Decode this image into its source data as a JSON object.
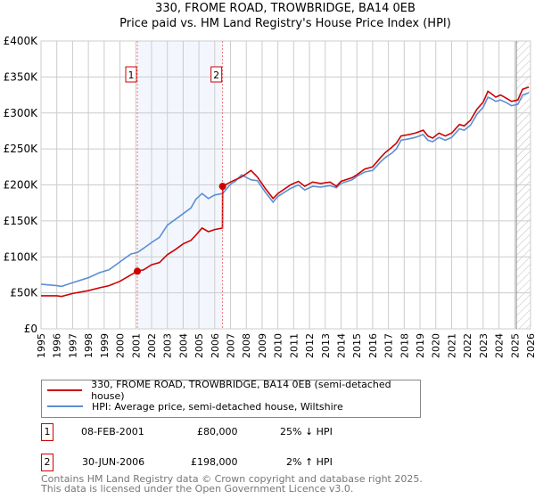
{
  "chart_data": {
    "type": "line",
    "title": "330, FROME ROAD, TROWBRIDGE, BA14 0EB",
    "subtitle": "Price paid vs. HM Land Registry's House Price Index (HPI)",
    "xlim": [
      1995,
      2026
    ],
    "ylim": [
      0,
      400000
    ],
    "x_ticks": [
      "1995",
      "1996",
      "1997",
      "1998",
      "1999",
      "2000",
      "2001",
      "2002",
      "2003",
      "2004",
      "2005",
      "2006",
      "2007",
      "2008",
      "2009",
      "2010",
      "2011",
      "2012",
      "2013",
      "2014",
      "2015",
      "2016",
      "2017",
      "2018",
      "2019",
      "2020",
      "2021",
      "2022",
      "2023",
      "2024",
      "2025",
      "2026"
    ],
    "y_ticks": [
      {
        "v": 0,
        "label": "£0"
      },
      {
        "v": 50000,
        "label": "£50K"
      },
      {
        "v": 100000,
        "label": "£100K"
      },
      {
        "v": 150000,
        "label": "£150K"
      },
      {
        "v": 200000,
        "label": "£200K"
      },
      {
        "v": 250000,
        "label": "£250K"
      },
      {
        "v": 300000,
        "label": "£300K"
      },
      {
        "v": 350000,
        "label": "£350K"
      },
      {
        "v": 400000,
        "label": "£400K"
      }
    ],
    "grid": true,
    "shaded_period": [
      2001.1,
      2006.5
    ],
    "forecast_hatch_from": 2025.1,
    "series": [
      {
        "name": "330, FROME ROAD, TROWBRIDGE, BA14 0EB (semi-detached house)",
        "color": "#cc0000",
        "x": [
          1995,
          1996,
          1996.3,
          1997,
          1998,
          1998.7,
          1999.3,
          2000,
          2000.7,
          2001.1,
          2001.5,
          2002,
          2002.5,
          2003,
          2003.5,
          2004,
          2004.5,
          2004.8,
          2005.2,
          2005.6,
          2006,
          2006.49,
          2006.5,
          2007,
          2007.3,
          2007.7,
          2008.3,
          2008.7,
          2009.2,
          2009.7,
          2010,
          2010.8,
          2011.3,
          2011.7,
          2012.2,
          2012.7,
          2013.3,
          2013.7,
          2014,
          2014.7,
          2015,
          2015.5,
          2016,
          2016.5,
          2016.8,
          2017.2,
          2017.5,
          2017.8,
          2018.3,
          2018.7,
          2019.2,
          2019.5,
          2019.8,
          2020.2,
          2020.6,
          2021,
          2021.5,
          2021.8,
          2022.2,
          2022.6,
          2023,
          2023.3,
          2023.5,
          2023.8,
          2024.1,
          2024.5,
          2024.8,
          2025.2,
          2025.5,
          2025.9
        ],
        "y": [
          46000,
          46000,
          45000,
          49000,
          53000,
          57000,
          60000,
          66000,
          75000,
          80000,
          82000,
          89000,
          92000,
          103000,
          110000,
          118000,
          123000,
          130000,
          140000,
          135000,
          138000,
          140000,
          198000,
          204000,
          207000,
          211000,
          220000,
          211000,
          195000,
          181000,
          188000,
          200000,
          205000,
          198000,
          204000,
          202000,
          204000,
          198000,
          205000,
          210000,
          214000,
          222000,
          225000,
          238000,
          245000,
          252000,
          258000,
          268000,
          270000,
          272000,
          276000,
          268000,
          265000,
          272000,
          268000,
          272000,
          284000,
          282000,
          290000,
          305000,
          315000,
          330000,
          327000,
          322000,
          325000,
          320000,
          316000,
          318000,
          333000,
          336000
        ]
      },
      {
        "name": "HPI: Average price, semi-detached house, Wiltshire",
        "color": "#5b8fd4",
        "x": [
          1995,
          1996,
          1996.3,
          1997,
          1998,
          1998.7,
          1999.3,
          2000,
          2000.7,
          2001.1,
          2001.5,
          2002,
          2002.5,
          2003,
          2003.5,
          2004,
          2004.5,
          2004.8,
          2005.2,
          2005.6,
          2006,
          2006.5,
          2007,
          2007.3,
          2007.7,
          2008.3,
          2008.7,
          2009.2,
          2009.7,
          2010,
          2010.8,
          2011.3,
          2011.7,
          2012.2,
          2012.7,
          2013.3,
          2013.7,
          2014,
          2014.7,
          2015,
          2015.5,
          2016,
          2016.5,
          2016.8,
          2017.2,
          2017.5,
          2017.8,
          2018.3,
          2018.7,
          2019.2,
          2019.5,
          2019.8,
          2020.2,
          2020.6,
          2021,
          2021.5,
          2021.8,
          2022.2,
          2022.6,
          2023,
          2023.3,
          2023.5,
          2023.8,
          2024.1,
          2024.5,
          2024.8,
          2025.2,
          2025.5,
          2025.9
        ],
        "y": [
          62000,
          60000,
          59000,
          64000,
          71000,
          78000,
          82000,
          93000,
          104000,
          106000,
          112000,
          120000,
          127000,
          144000,
          152000,
          160000,
          168000,
          180000,
          188000,
          181000,
          186000,
          188000,
          201000,
          205000,
          214000,
          207000,
          206000,
          190000,
          176000,
          184000,
          195000,
          200000,
          193000,
          198000,
          197000,
          199000,
          196000,
          202000,
          207000,
          212000,
          218000,
          220000,
          232000,
          238000,
          244000,
          250000,
          262000,
          264000,
          266000,
          270000,
          262000,
          260000,
          266000,
          262000,
          266000,
          278000,
          276000,
          283000,
          298000,
          308000,
          322000,
          320000,
          316000,
          318000,
          314000,
          310000,
          312000,
          325000,
          328000
        ]
      }
    ],
    "sale_markers": [
      {
        "label": "1",
        "x": 2001.1,
        "y": 80000
      },
      {
        "label": "2",
        "x": 2006.5,
        "y": 198000
      }
    ]
  },
  "legend": {
    "property": "330, FROME ROAD, TROWBRIDGE, BA14 0EB (semi-detached house)",
    "hpi": "HPI: Average price, semi-detached house, Wiltshire"
  },
  "transactions": [
    {
      "num": "1",
      "date": "08-FEB-2001",
      "price": "£80,000",
      "hpi": "25% ↓ HPI"
    },
    {
      "num": "2",
      "date": "30-JUN-2006",
      "price": "£198,000",
      "hpi": "2% ↑ HPI"
    }
  ],
  "footer": {
    "line1": "Contains HM Land Registry data © Crown copyright and database right 2025.",
    "line2": "This data is licensed under the Open Government Licence v3.0."
  }
}
